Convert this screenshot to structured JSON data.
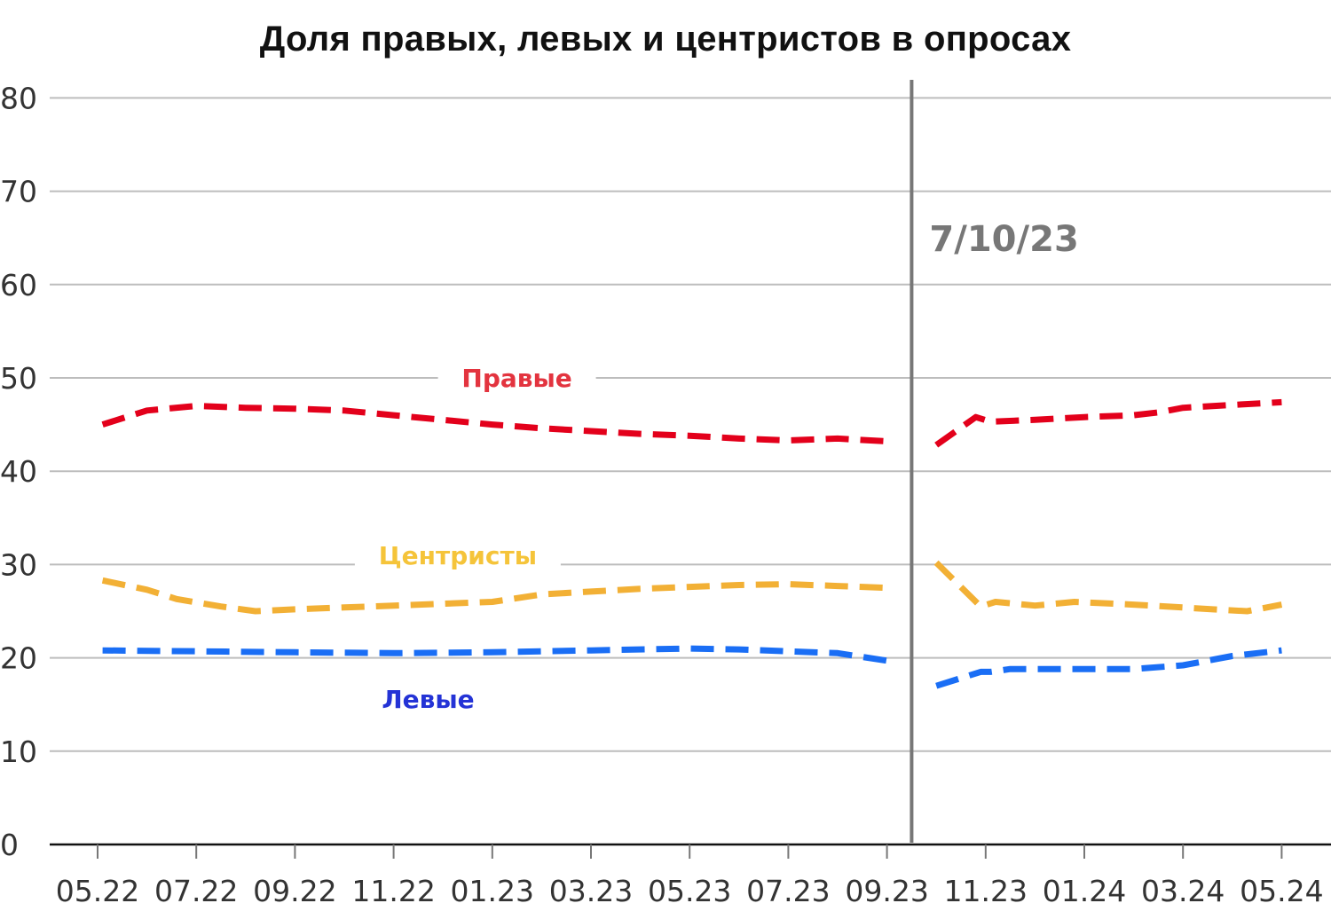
{
  "chart_data": {
    "type": "line",
    "title": "Доля правых, левых и центристов в опросах",
    "xlabel": "",
    "ylabel": "",
    "ylim": [
      0,
      80
    ],
    "y_ticks": [
      "0",
      "10",
      "20",
      "30",
      "40",
      "50",
      "60",
      "70",
      "80"
    ],
    "x_ticks": [
      "05.22",
      "07.22",
      "09.22",
      "11.22",
      "01.23",
      "03.23",
      "05.23",
      "07.23",
      "09.23",
      "11.23",
      "01.24",
      "03.24",
      "05.24"
    ],
    "grid": "horizontal",
    "event_marker": {
      "label": "7/10/23",
      "x": 16.5,
      "color": "#777777"
    },
    "series": [
      {
        "name": "Правые",
        "color": "#e3001b",
        "segments": [
          [
            [
              0.1,
              45.0
            ],
            [
              1.0,
              46.5
            ],
            [
              2.0,
              47.0
            ],
            [
              3.0,
              46.8
            ],
            [
              4.0,
              46.7
            ],
            [
              5.0,
              46.5
            ],
            [
              6.0,
              46.0
            ],
            [
              7.0,
              45.5
            ],
            [
              8.0,
              45.0
            ],
            [
              9.0,
              44.6
            ],
            [
              10.0,
              44.3
            ],
            [
              11.0,
              44.0
            ],
            [
              12.0,
              43.8
            ],
            [
              13.0,
              43.5
            ],
            [
              14.0,
              43.3
            ],
            [
              15.0,
              43.5
            ],
            [
              16.0,
              43.2
            ]
          ],
          [
            [
              17.0,
              42.8
            ],
            [
              17.8,
              45.8
            ],
            [
              18.1,
              45.3
            ],
            [
              19.0,
              45.5
            ],
            [
              20.0,
              45.8
            ],
            [
              21.0,
              46.0
            ],
            [
              21.5,
              46.3
            ],
            [
              22.0,
              46.8
            ],
            [
              23.0,
              47.1
            ],
            [
              24.0,
              47.4
            ]
          ]
        ]
      },
      {
        "name": "Центристы",
        "color": "#f2b035",
        "segments": [
          [
            [
              0.1,
              28.3
            ],
            [
              1.0,
              27.3
            ],
            [
              1.6,
              26.3
            ],
            [
              2.5,
              25.5
            ],
            [
              3.2,
              25.0
            ],
            [
              4.0,
              25.2
            ],
            [
              5.0,
              25.4
            ],
            [
              6.0,
              25.6
            ],
            [
              7.0,
              25.8
            ],
            [
              8.0,
              26.0
            ],
            [
              9.0,
              26.8
            ],
            [
              10.0,
              27.1
            ],
            [
              11.0,
              27.4
            ],
            [
              12.0,
              27.6
            ],
            [
              13.0,
              27.8
            ],
            [
              14.0,
              27.9
            ],
            [
              15.0,
              27.7
            ],
            [
              16.0,
              27.5
            ]
          ],
          [
            [
              17.0,
              30.2
            ],
            [
              17.9,
              25.5
            ],
            [
              18.2,
              26.0
            ],
            [
              19.0,
              25.6
            ],
            [
              19.8,
              26.0
            ],
            [
              21.0,
              25.7
            ],
            [
              22.0,
              25.4
            ],
            [
              22.6,
              25.2
            ],
            [
              23.3,
              25.0
            ],
            [
              24.0,
              25.7
            ]
          ]
        ]
      },
      {
        "name": "Левые",
        "color": "#1a6ef5",
        "segments": [
          [
            [
              0.1,
              20.8
            ],
            [
              2.0,
              20.7
            ],
            [
              4.0,
              20.6
            ],
            [
              6.0,
              20.5
            ],
            [
              8.0,
              20.6
            ],
            [
              10.0,
              20.8
            ],
            [
              12.0,
              21.0
            ],
            [
              13.0,
              20.9
            ],
            [
              14.0,
              20.7
            ],
            [
              15.0,
              20.5
            ],
            [
              16.0,
              19.7
            ]
          ],
          [
            [
              17.0,
              17.0
            ],
            [
              17.9,
              18.5
            ],
            [
              18.1,
              18.5
            ],
            [
              18.5,
              18.8
            ],
            [
              20.0,
              18.8
            ],
            [
              21.0,
              18.8
            ],
            [
              22.0,
              19.2
            ],
            [
              23.0,
              20.2
            ],
            [
              24.0,
              20.8
            ]
          ]
        ]
      }
    ],
    "labels": [
      {
        "series": "Правые",
        "text": "Правые",
        "x": 8.5,
        "y": 50,
        "color": "#e3343f"
      },
      {
        "series": "Центристы",
        "text": "Центристы",
        "x": 7.3,
        "y": 31,
        "color": "#f5c43a"
      },
      {
        "series": "Левые",
        "text": "Левые",
        "x": 6.7,
        "y": 15.6,
        "color": "#2433d6"
      }
    ]
  }
}
